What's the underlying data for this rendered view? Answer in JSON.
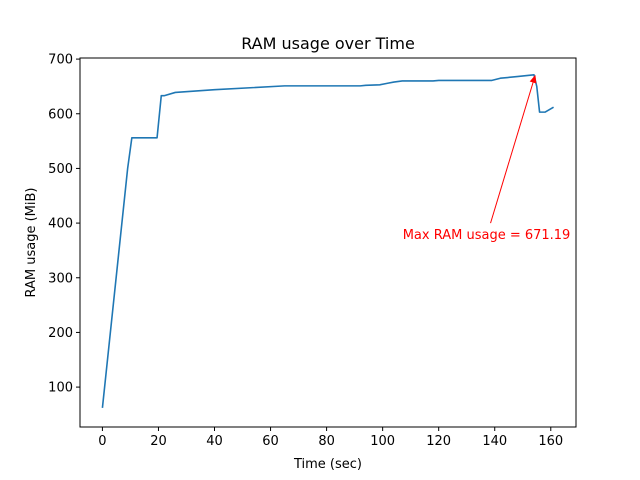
{
  "chart_data": {
    "type": "line",
    "title": "RAM usage over Time",
    "xlabel": "Time (sec)",
    "ylabel": "RAM usage (MiB)",
    "xlim": [
      -8,
      169
    ],
    "ylim": [
      27,
      702
    ],
    "xticks": [
      0,
      20,
      40,
      60,
      80,
      100,
      120,
      140,
      160
    ],
    "yticks": [
      100,
      200,
      300,
      400,
      500,
      600,
      700
    ],
    "grid": false,
    "legend": "none",
    "series": [
      {
        "color": "#1f77b4",
        "x": [
          0,
          9,
          10.5,
          19.5,
          21,
          22,
          26,
          40,
          65,
          92,
          94,
          99,
          102,
          104,
          107,
          118,
          120,
          139,
          142,
          148,
          154,
          155,
          156,
          158,
          161
        ],
        "y": [
          62,
          500,
          556,
          556,
          633,
          633,
          639,
          644,
          651,
          651,
          652,
          653,
          656,
          658,
          660,
          660,
          661,
          661,
          665,
          668,
          671.19,
          650,
          603,
          603,
          612
        ]
      }
    ],
    "annotation": {
      "text": "Max RAM usage = 671.19",
      "color": "#ff0000",
      "point": [
        154.5,
        671.19
      ],
      "text_anchor": [
        138.5,
        400
      ]
    }
  }
}
